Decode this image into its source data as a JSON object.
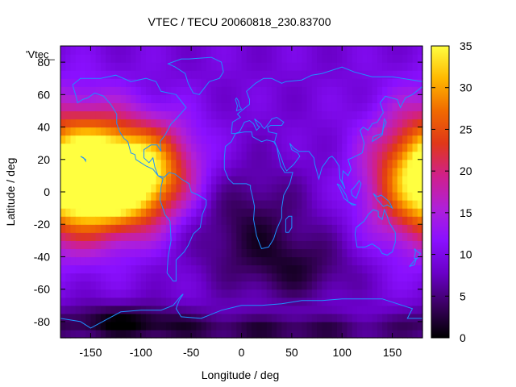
{
  "chart_data": {
    "type": "heatmap",
    "title": "VTEC / TECU 20060818_230.83700",
    "xlabel": "Longitude / deg",
    "ylabel": "Latitude / deg",
    "series_key_label": "'Vtec_",
    "xlim": [
      -180,
      180
    ],
    "ylim": [
      -90,
      90
    ],
    "x_ticks": [
      -150,
      -100,
      -50,
      0,
      50,
      100,
      150
    ],
    "y_ticks": [
      -80,
      -60,
      -40,
      -20,
      0,
      20,
      40,
      60,
      80
    ],
    "colorbar": {
      "range": [
        0,
        35
      ],
      "ticks": [
        0,
        5,
        10,
        15,
        20,
        25,
        30,
        35
      ],
      "palette": [
        "#000000",
        "#3a0060",
        "#6a00c8",
        "#8a10ff",
        "#b020d8",
        "#d0208a",
        "#e03818",
        "#f06a00",
        "#ffb800",
        "#ffff40"
      ]
    },
    "grid_resolution_deg": [
      5,
      5
    ],
    "field_features": [
      {
        "lon": -125,
        "lat": 8,
        "value": 33,
        "spread_lon": 42,
        "spread_lat": 22
      },
      {
        "lon": -160,
        "lat": 20,
        "value": 7,
        "spread_lon": 35,
        "spread_lat": 30
      },
      {
        "lon": -80,
        "lat": 20,
        "value": 6,
        "spread_lon": 30,
        "spread_lat": 20
      },
      {
        "lon": 170,
        "lat": 8,
        "value": 14,
        "spread_lon": 35,
        "spread_lat": 28
      },
      {
        "lon": 5,
        "lat": -20,
        "value": -6,
        "spread_lon": 45,
        "spread_lat": 25
      },
      {
        "lon": 60,
        "lat": -48,
        "value": -5,
        "spread_lon": 40,
        "spread_lat": 15
      },
      {
        "lon": -120,
        "lat": -80,
        "value": -8,
        "spread_lon": 50,
        "spread_lat": 8
      },
      {
        "lon": 40,
        "lat": -85,
        "value": -6,
        "spread_lon": 90,
        "spread_lat": 6
      }
    ],
    "background_value": 9,
    "coastline_color": "#1e90ff",
    "grid": false
  }
}
